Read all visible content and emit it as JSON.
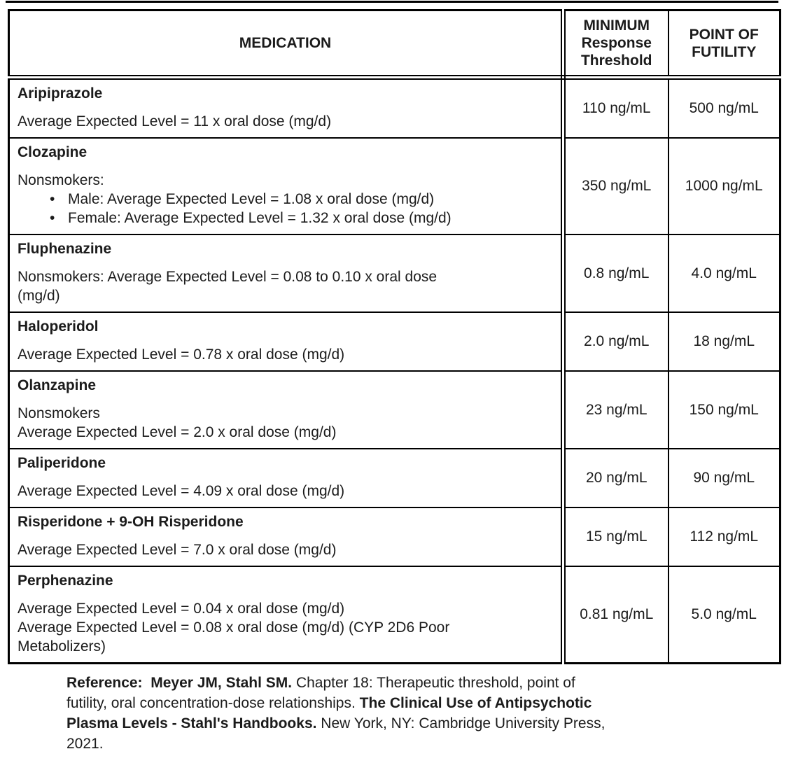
{
  "colors": {
    "background": "#ffffff",
    "border": "#000000",
    "text": "#1b1b1b"
  },
  "table": {
    "headers": {
      "medication": "MEDICATION",
      "min_threshold": "MINIMUM\nResponse\nThreshold",
      "futility": "POINT OF\nFUTILITY"
    },
    "rows": [
      {
        "medication": "Aripiprazole",
        "blocks": [
          {
            "type": "para",
            "lines": [
              "Average Expected Level = 11 x oral dose (mg/d)"
            ]
          }
        ],
        "min_threshold": "110 ng/mL",
        "futility": "500 ng/mL"
      },
      {
        "medication": "Clozapine",
        "blocks": [
          {
            "type": "para",
            "lines": [
              "Nonsmokers:"
            ]
          },
          {
            "type": "bullets",
            "items": [
              "Male: Average Expected Level = 1.08 x oral dose (mg/d)",
              "Female: Average Expected Level = 1.32 x oral dose (mg/d)"
            ]
          }
        ],
        "min_threshold": "350 ng/mL",
        "futility": "1000 ng/mL"
      },
      {
        "medication": "Fluphenazine",
        "blocks": [
          {
            "type": "para",
            "lines": [
              "Nonsmokers: Average Expected Level = 0.08 to 0.10 x oral dose",
              "(mg/d)"
            ]
          }
        ],
        "min_threshold": "0.8 ng/mL",
        "futility": "4.0 ng/mL"
      },
      {
        "medication": "Haloperidol",
        "blocks": [
          {
            "type": "para",
            "lines": [
              "Average Expected Level = 0.78 x oral dose (mg/d)"
            ]
          }
        ],
        "min_threshold": "2.0 ng/mL",
        "futility": "18 ng/mL"
      },
      {
        "medication": "Olanzapine",
        "blocks": [
          {
            "type": "para",
            "lines": [
              "Nonsmokers",
              "Average Expected Level = 2.0 x oral dose (mg/d)"
            ]
          }
        ],
        "min_threshold": "23 ng/mL",
        "futility": "150 ng/mL"
      },
      {
        "medication": "Paliperidone",
        "blocks": [
          {
            "type": "para",
            "lines": [
              "Average Expected Level = 4.09 x oral dose (mg/d)"
            ]
          }
        ],
        "min_threshold": "20 ng/mL",
        "futility": "90 ng/mL"
      },
      {
        "medication": "Risperidone + 9-OH Risperidone",
        "blocks": [
          {
            "type": "para",
            "lines": [
              "Average Expected Level = 7.0 x oral dose (mg/d)"
            ]
          }
        ],
        "min_threshold": "15 ng/mL",
        "futility": "112 ng/mL"
      },
      {
        "medication": "Perphenazine",
        "blocks": [
          {
            "type": "para",
            "lines": [
              "Average Expected Level = 0.04 x oral dose (mg/d)",
              "Average Expected Level = 0.08 x oral dose (mg/d) (CYP 2D6 Poor",
              "Metabolizers)"
            ]
          }
        ],
        "min_threshold": "0.81 ng/mL",
        "futility": "5.0 ng/mL"
      }
    ]
  },
  "reference": {
    "lines": [
      [
        {
          "text": "Reference:  Meyer JM, Stahl SM.",
          "bold": true
        },
        {
          "text": " Chapter 18: Therapeutic threshold, point of",
          "bold": false
        }
      ],
      [
        {
          "text": "futility, oral concentration-dose relationships. ",
          "bold": false
        },
        {
          "text": "The Clinical Use of Antipsychotic",
          "bold": true
        }
      ],
      [
        {
          "text": "Plasma Levels - Stahl's Handbooks.",
          "bold": true
        },
        {
          "text": " New York, NY: Cambridge University Press,",
          "bold": false
        }
      ],
      [
        {
          "text": "2021.",
          "bold": false
        }
      ]
    ]
  }
}
